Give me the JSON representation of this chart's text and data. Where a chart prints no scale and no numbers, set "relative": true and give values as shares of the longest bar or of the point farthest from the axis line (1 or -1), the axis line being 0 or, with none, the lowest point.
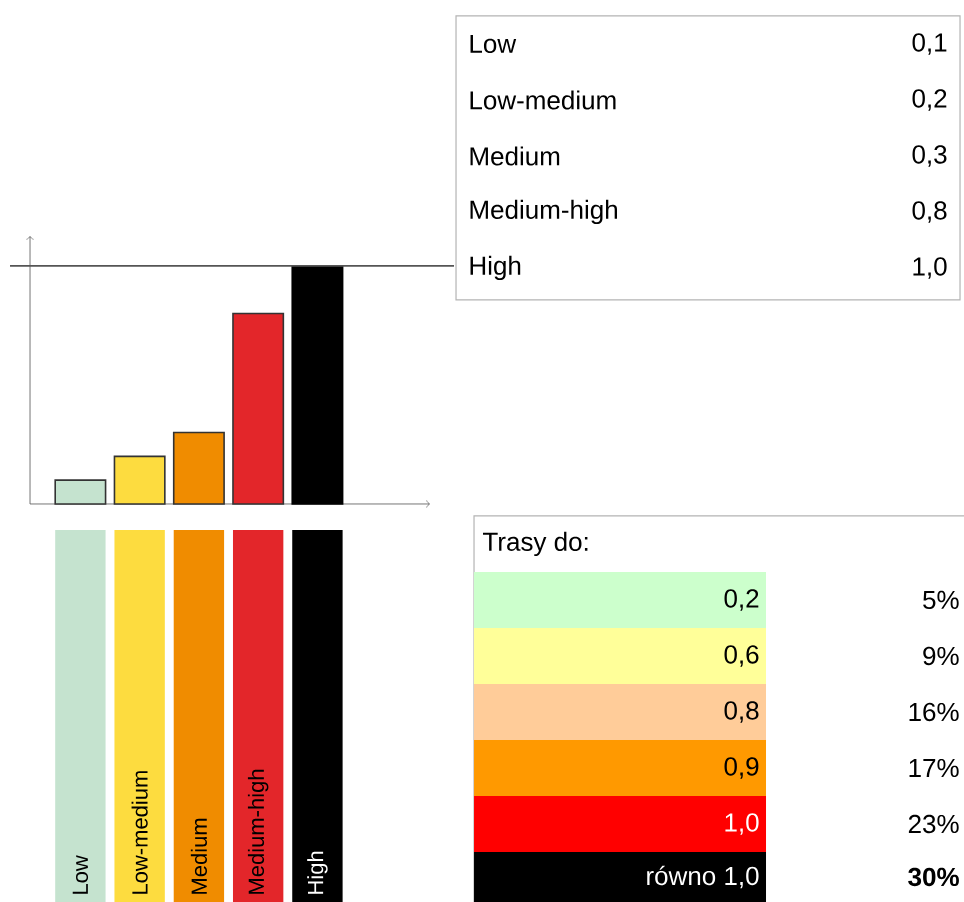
{
  "chart_data": [
    {
      "type": "bar",
      "relative": true,
      "categories": [
        "Low",
        "Low-medium",
        "Medium",
        "Medium-high",
        "High"
      ],
      "values": [
        0.1,
        0.2,
        0.3,
        0.8,
        1.0
      ],
      "colors": [
        "#c5e3cf",
        "#fddc3f",
        "#f08c00",
        "#e3262a",
        "#000000"
      ],
      "ref_lines": [
        {
          "axis": "y",
          "value": 1.0,
          "color": "#555555"
        }
      ]
    },
    {
      "type": "other",
      "categories": [
        "Low",
        "Low-medium",
        "Medium",
        "Medium-high",
        "High"
      ],
      "value_labels": [
        "0,1",
        "0,2",
        "0,3",
        "0,8",
        "1,0"
      ]
    },
    {
      "type": "other",
      "title": "Trasy do:",
      "categories": [
        "0,2",
        "0,6",
        "0,8",
        "0,9",
        "1,0",
        "równo 1,0"
      ],
      "value_labels": [
        "5%",
        "9%",
        "16%",
        "17%",
        "23%",
        "**30%**"
      ],
      "colors": [
        "#ccffcc",
        "#ffff99",
        "#ffcc99",
        "#ff9900",
        "#ff0000",
        "#000000"
      ]
    }
  ]
}
